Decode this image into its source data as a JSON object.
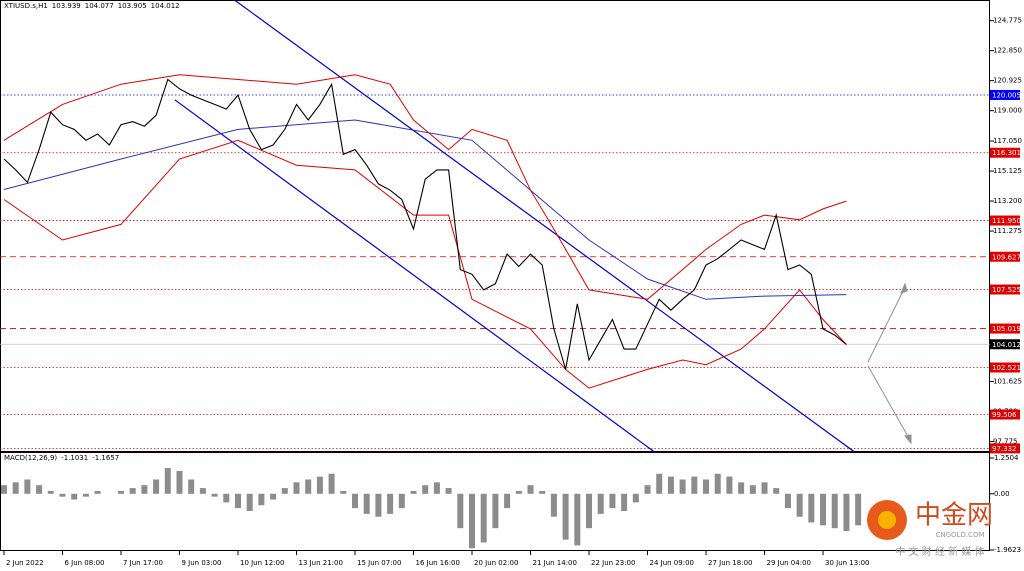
{
  "chart_data": [
    {
      "type": "line",
      "title": "XTIUSD.s,H1",
      "header_values": [
        103.939,
        104.077,
        103.905,
        104.012
      ],
      "xlim": [
        -0.34,
        84.27
      ],
      "ylim": [
        97.1,
        126.1
      ],
      "xticks": [
        {
          "value": 0,
          "label": "2 Jun 2022"
        },
        {
          "value": 5,
          "label": "6 Jun 08:00"
        },
        {
          "value": 10,
          "label": "7 Jun 17:00"
        },
        {
          "value": 15,
          "label": "9 Jun 03:00"
        },
        {
          "value": 20,
          "label": "10 Jun 12:00"
        },
        {
          "value": 25,
          "label": "13 Jun 21:00"
        },
        {
          "value": 30,
          "label": "15 Jun 07:00"
        },
        {
          "value": 35,
          "label": "16 Jun 16:00"
        },
        {
          "value": 40,
          "label": "20 Jun 02:00"
        },
        {
          "value": 45,
          "label": "21 Jun 14:00"
        },
        {
          "value": 50,
          "label": "22 Jun 23:00"
        },
        {
          "value": 55,
          "label": "24 Jun 09:00"
        },
        {
          "value": 60,
          "label": "27 Jun 18:00"
        },
        {
          "value": 65,
          "label": "29 Jun 04:00"
        },
        {
          "value": 70,
          "label": "30 Jun 13:00"
        }
      ],
      "yticks": [
        124.775,
        {
          "value": 122.85,
          "label": "122.850"
        },
        120.925,
        {
          "value": 119,
          "label": "119.000"
        },
        {
          "value": 117.05,
          "label": "117.050"
        },
        115.125,
        {
          "value": 113.2,
          "label": "113.200"
        },
        111.275,
        101.625,
        {
          "value": 99.7,
          "label": "99.700"
        },
        97.775
      ],
      "series": [
        {
          "color": "#000000",
          "values": [
            115.9,
            115.2,
            114.4,
            116.5,
            118.9,
            118.1,
            117.8,
            117.1,
            117.5,
            116.8,
            118.1,
            118.3,
            118.0,
            118.7,
            121.0,
            120.4,
            120.0,
            119.7,
            119.4,
            119.1,
            120.0,
            117.8,
            116.5,
            116.8,
            117.8,
            119.4,
            118.4,
            119.4,
            120.7,
            116.2,
            116.5,
            115.5,
            114.3,
            113.9,
            113.3,
            111.4,
            114.6,
            115.2,
            115.2,
            108.8,
            108.5,
            107.5,
            107.9,
            109.8,
            109.0,
            109.8,
            109.1,
            105.0,
            102.4,
            106.6,
            103.0,
            104.3,
            105.6,
            103.7,
            103.7,
            105.3,
            106.9,
            106.2,
            106.9,
            107.5,
            109.1,
            109.5,
            110.1,
            110.7,
            110.4,
            110.1,
            112.3,
            108.8,
            109.1,
            108.5,
            105.0,
            104.6,
            104.0
          ]
        }
      ],
      "bands": [
        {
          "color": "#e00000",
          "x": [
            0,
            5,
            10,
            15,
            20,
            25,
            30,
            33,
            35,
            38,
            40,
            43,
            45,
            47,
            50,
            55,
            58,
            60,
            63,
            65,
            68,
            70,
            72
          ],
          "values": [
            117.1,
            119.4,
            120.7,
            121.3,
            121.0,
            120.7,
            121.3,
            120.7,
            118.4,
            116.5,
            117.8,
            117.1,
            113.9,
            111.4,
            107.5,
            106.9,
            108.8,
            110.1,
            111.7,
            112.3,
            112.0,
            112.7,
            113.2
          ]
        },
        {
          "color": "#e00000",
          "x": [
            0,
            5,
            10,
            15,
            20,
            25,
            30,
            35,
            38,
            40,
            45,
            48,
            50,
            55,
            58,
            60,
            63,
            65,
            68,
            70,
            72
          ],
          "values": [
            113.3,
            110.7,
            111.7,
            115.9,
            117.1,
            115.5,
            115.2,
            112.3,
            112.3,
            106.9,
            105.0,
            102.4,
            101.2,
            102.4,
            103.0,
            102.7,
            103.7,
            105.0,
            107.5,
            105.6,
            104.0
          ]
        },
        {
          "color": "#3030c0",
          "x": [
            0,
            10,
            20,
            30,
            40,
            45,
            50,
            55,
            60,
            65,
            72
          ],
          "values": [
            113.94,
            115.9,
            117.8,
            118.4,
            117.1,
            113.9,
            110.7,
            108.2,
            106.9,
            107.1,
            107.2
          ]
        }
      ],
      "channel_lines": [
        {
          "color": "#0000cc",
          "x": [
            19.7,
            72.7
          ],
          "values": [
            126.1,
            97.1
          ]
        },
        {
          "color": "#0000cc",
          "x": [
            14.6,
            55.6
          ],
          "values": [
            119.7,
            97.1
          ]
        }
      ],
      "levels": [
        {
          "value": 120.005,
          "color": "#0000ff",
          "style": "dotted"
        },
        {
          "value": 116.301,
          "color": "#e00000",
          "style": "dotted"
        },
        {
          "value": 111.95,
          "label": "111.950",
          "color": "#e00000",
          "style": "dotted"
        },
        {
          "value": 109.627,
          "color": "#e00000",
          "style": "dashed"
        },
        {
          "value": 107.525,
          "color": "#e00000",
          "style": "dotted"
        },
        {
          "value": 105.019,
          "color": "#e00000",
          "style": "dashed"
        },
        {
          "value": 102.521,
          "color": "#e00000",
          "style": "dotted"
        },
        {
          "value": 99.506,
          "color": "#e00000",
          "style": "dotted"
        },
        {
          "value": 97.332,
          "color": "#e00000",
          "style": "dotted"
        }
      ],
      "current": {
        "value": 104.012,
        "color": "#000000"
      }
    },
    {
      "type": "bar",
      "title": "MACD(12,26,9)",
      "header_values": [
        -1.1031,
        -1.1657
      ],
      "color": "#8c8c8c",
      "ylim": [
        -1.9623,
        1.2504
      ],
      "yticks": [
        1.2504,
        {
          "value": 0,
          "label": "0.00"
        },
        -1.9623
      ],
      "values": [
        0.3,
        0.4,
        0.5,
        0.3,
        0.1,
        -0.1,
        -0.2,
        -0.1,
        0.1,
        0.0,
        0.1,
        0.2,
        0.3,
        0.5,
        0.9,
        0.8,
        0.5,
        0.2,
        -0.1,
        -0.3,
        -0.5,
        -0.6,
        -0.4,
        -0.2,
        0.2,
        0.4,
        0.5,
        0.6,
        0.7,
        0.1,
        -0.5,
        -0.7,
        -0.8,
        -0.7,
        -0.5,
        0.1,
        0.3,
        0.4,
        0.2,
        -1.2,
        -1.9,
        -1.7,
        -1.2,
        -0.5,
        0.1,
        0.3,
        0.1,
        -0.8,
        -1.6,
        -1.8,
        -1.2,
        -0.7,
        -0.5,
        -0.6,
        -0.3,
        0.3,
        0.7,
        0.6,
        0.5,
        0.6,
        0.5,
        0.7,
        0.6,
        0.4,
        0.3,
        0.4,
        0.2,
        -0.5,
        -0.8,
        -1.0,
        -1.1,
        -1.2,
        -1.3,
        -1.1
      ]
    }
  ],
  "watermark": {
    "brand": "中金网",
    "site": "CNGOLD.COM",
    "slogan": "中 文 财 经 新 媒 体"
  }
}
